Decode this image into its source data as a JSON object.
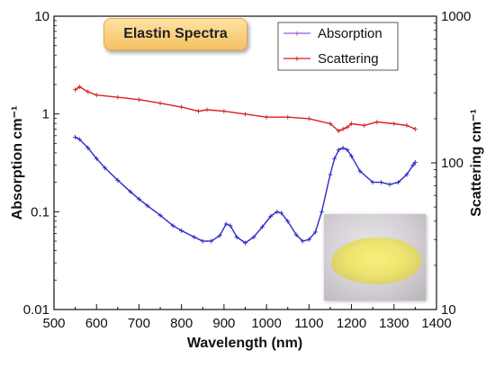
{
  "chart_data": {
    "type": "line",
    "title": "Elastin Spectra",
    "xlabel": "Wavelength (nm)",
    "ylabel_left": "Absorption cm⁻¹",
    "ylabel_right": "Scattering cm⁻¹",
    "xlim": [
      500,
      1400
    ],
    "ylim_left": [
      0.01,
      10
    ],
    "ylim_right": [
      10,
      1000
    ],
    "yscale": "log",
    "x_ticks": [
      "500",
      "600",
      "700",
      "800",
      "900",
      "1000",
      "1100",
      "1200",
      "1300",
      "1400"
    ],
    "y_left_ticks": [
      "10",
      "1",
      "0.1",
      "0.01"
    ],
    "y_right_ticks": [
      "1000",
      "100",
      "10"
    ],
    "grid": false,
    "legend_position": "top-right",
    "series": [
      {
        "name": "Absorption",
        "axis": "left",
        "color": "#2a2ac8",
        "marker": "+",
        "x": [
          550,
          560,
          580,
          600,
          620,
          650,
          680,
          700,
          720,
          750,
          780,
          800,
          830,
          850,
          870,
          890,
          905,
          915,
          930,
          950,
          970,
          990,
          1010,
          1025,
          1035,
          1050,
          1070,
          1085,
          1100,
          1115,
          1130,
          1150,
          1160,
          1170,
          1180,
          1190,
          1200,
          1220,
          1250,
          1270,
          1290,
          1310,
          1330,
          1345,
          1350
        ],
        "values": [
          0.58,
          0.55,
          0.45,
          0.35,
          0.28,
          0.21,
          0.16,
          0.135,
          0.115,
          0.092,
          0.072,
          0.064,
          0.055,
          0.05,
          0.05,
          0.057,
          0.075,
          0.072,
          0.055,
          0.048,
          0.055,
          0.07,
          0.09,
          0.1,
          0.097,
          0.08,
          0.058,
          0.05,
          0.052,
          0.062,
          0.1,
          0.24,
          0.35,
          0.43,
          0.45,
          0.43,
          0.37,
          0.26,
          0.2,
          0.2,
          0.19,
          0.2,
          0.24,
          0.3,
          0.32
        ]
      },
      {
        "name": "Scattering",
        "axis": "right",
        "color": "#d81e1e",
        "marker": "+",
        "x": [
          550,
          560,
          580,
          600,
          650,
          700,
          750,
          800,
          840,
          860,
          900,
          950,
          1000,
          1050,
          1100,
          1150,
          1170,
          1180,
          1190,
          1200,
          1230,
          1260,
          1300,
          1330,
          1350
        ],
        "values": [
          315,
          330,
          305,
          290,
          280,
          270,
          255,
          240,
          225,
          230,
          225,
          215,
          205,
          205,
          200,
          185,
          165,
          170,
          175,
          185,
          180,
          190,
          185,
          180,
          170
        ]
      }
    ]
  }
}
